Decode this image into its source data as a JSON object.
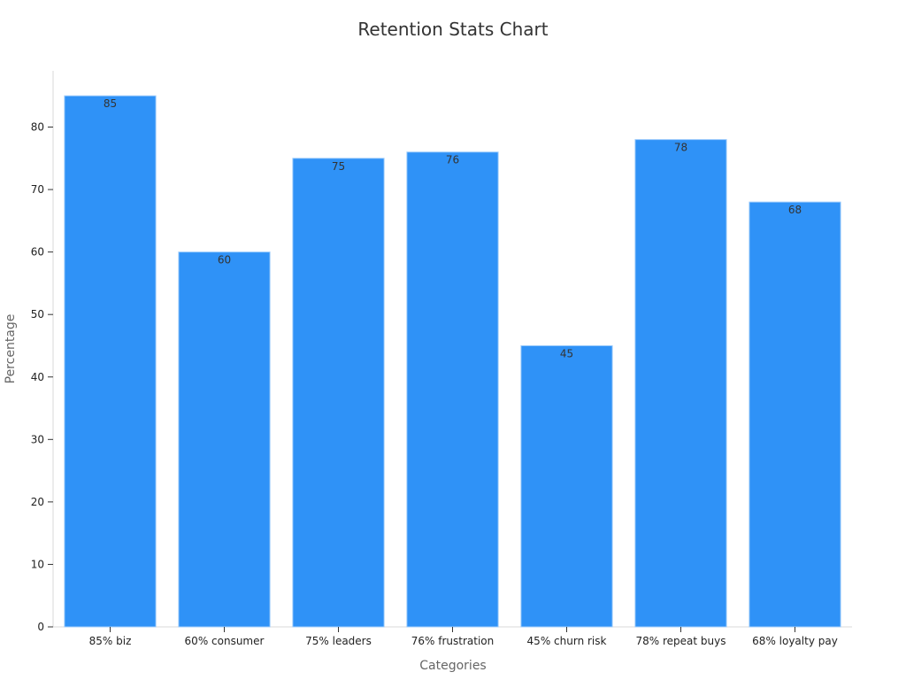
{
  "chart_data": {
    "type": "bar",
    "title": "Retention Stats Chart",
    "xlabel": "Categories",
    "ylabel": "Percentage",
    "categories": [
      "85% biz",
      "60% consumer",
      "75% leaders",
      "76% frustration",
      "45% churn risk",
      "78% repeat buys",
      "68% loyalty pay"
    ],
    "values": [
      85,
      60,
      75,
      76,
      45,
      78,
      68
    ],
    "ylim": [
      0,
      89
    ],
    "yticks": [
      0,
      10,
      20,
      30,
      40,
      50,
      60,
      70,
      80
    ],
    "grid": false,
    "legend": "none",
    "colors": {
      "bar": "#2F92F7",
      "bar_border": "#9CCBFB",
      "axis": "#D9D9D9",
      "text": "#333333"
    }
  }
}
